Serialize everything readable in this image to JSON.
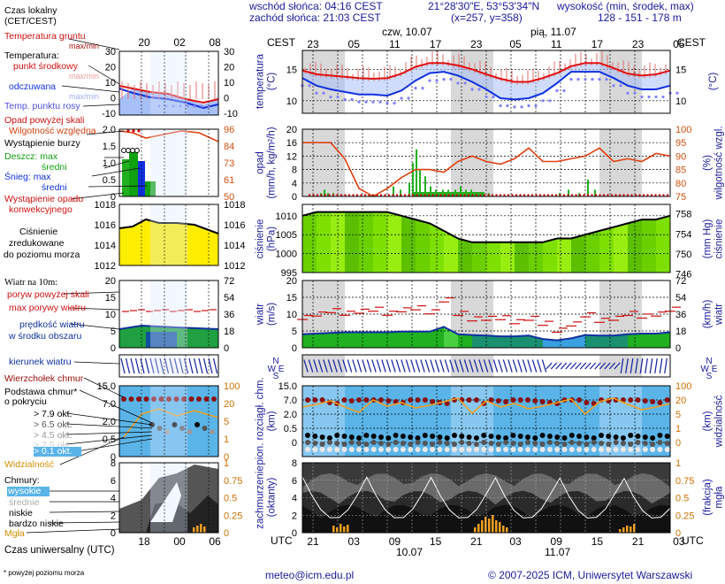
{
  "header": {
    "sunrise": "wschód słońca: 04:16 CEST",
    "sunset": "zachód słońca: 21:03 CEST",
    "coords": "21°28'30\"E, 53°53'34\"N",
    "grid": "(x=257, y=358)",
    "elevation_title": "wysokość (min, środek, max)",
    "elevation_values": "128 - 151 - 178 m",
    "day1": "czw, 10.07",
    "day2": "pią, 11.07"
  },
  "time": {
    "cest_label": "CEST",
    "utc_label": "UTC",
    "cest_ticks": [
      "23",
      "05",
      "11",
      "17",
      "23",
      "05",
      "11",
      "17",
      "23",
      "05"
    ],
    "utc_ticks": [
      "21",
      "03",
      "09",
      "15",
      "21",
      "03",
      "09",
      "15",
      "21",
      "03"
    ],
    "utc_dates": [
      "10.07",
      "11.07"
    ],
    "legend_cest_ticks": [
      "20",
      "02",
      "08"
    ],
    "legend_utc_ticks": [
      "18",
      "00",
      "06"
    ]
  },
  "legend": {
    "time_local": "Czas lokalny",
    "time_local_sub": "(CET/CEST)",
    "soil_temp": "Temperatura gruntu",
    "max_min": "max/min",
    "temperature": "Temperatura:",
    "mid_point": "punkt środkowy",
    "max_min2": "max/min",
    "felt": "odczuwana",
    "felt_max_min": "max/min",
    "dew_point": "Temp. punktu rosy",
    "precip_over_scale": "Opad powyżej skali",
    "humidity": "Wilgotność względna",
    "storm": "Wystąpienie burzy",
    "rain_max": "Deszcz: max",
    "rain_mid": "średni",
    "snow_max": "Śnieg:   max",
    "snow_mid": "średni",
    "convective": "Wystąpienie opadu",
    "convective2": "konwekcyjnego",
    "pressure1": "Ciśnienie",
    "pressure2": "zredukowane",
    "pressure3": "do poziomu morza",
    "wind_at": "Wiatr na 10m:",
    "gust_over": "poryw powyżej skali",
    "gust_max": "max porywy wiatru",
    "wind_speed1": "prędkość wiatru",
    "wind_speed2": "w środku obszaru",
    "wind_dir": "kierunek wiatru",
    "cloud_top": "Wierzchołek chmur",
    "cloud_base1": "Podstawa chmur*",
    "cloud_base2": "o pokryciu",
    "okt79": "> 7.9 okt.",
    "okt65": "> 6.5 okt.",
    "okt45": "> 4.5 okt.",
    "okt25": "> 2.5 okt.",
    "okt01": "> 0.1 okt.",
    "visibility": "Widzialność",
    "clouds": "Chmury:",
    "high": "wysokie",
    "mid": "średnie",
    "low": "niskie",
    "very_low": "bardzo niskie",
    "fog": "Mgła",
    "utc_time": "Czas uniwersalny (UTC)",
    "footnote": "* powyżej poziomu morza"
  },
  "axes": {
    "temp_label": "temperatura\n(°C)",
    "precip_label": "opad\n(mm/h, kg/m²/h)",
    "humidity_label": "(%)\nwilgotność wzgl.",
    "pressure_label": "ciśnienie\n(hPa)",
    "pressure_mmhg": "(mm Hg)\nciśnienie",
    "wind_label": "wiatr\n(m/s)",
    "wind_kmh": "(km/h)\nwiatr",
    "cloud_label": "pion. rozciągł. chm.\n(km)",
    "vis_label": "(km)\nwidzialność",
    "cover_label": "zachmurzenie\n(oktanty)",
    "fog_label": "(frakcja)\nmgła",
    "temp_ticks": [
      "15",
      "10"
    ],
    "precip_ticks": [
      "20",
      "16",
      "12",
      "8",
      "4",
      "0"
    ],
    "humidity_ticks": [
      "100",
      "95",
      "90",
      "85",
      "80",
      "75"
    ],
    "pressure_ticks": [
      "1010",
      "1005",
      "1000",
      "995"
    ],
    "mmhg_ticks": [
      "758",
      "754",
      "750",
      "746"
    ],
    "wind_ticks": [
      "20",
      "15",
      "10",
      "5",
      "0"
    ],
    "kmh_ticks": [
      "72",
      "54",
      "36",
      "18",
      "0"
    ],
    "cloud_ticks": [
      "15.0",
      "7.0",
      "2.0",
      "0.5",
      "0"
    ],
    "vis_ticks": [
      "100",
      "20",
      "5",
      "1",
      "0"
    ],
    "cover_ticks": [
      "8",
      "6",
      "4",
      "2",
      "0"
    ],
    "fog_ticks": [
      "1",
      "0.75",
      "0.5",
      "0.25",
      "0"
    ],
    "legend_temp_ticks": [
      "30",
      "20",
      "10",
      "0",
      "-10"
    ],
    "legend_precip_ticks": [
      "2.0",
      "1.5",
      "1.0",
      "0.5",
      "0"
    ],
    "legend_hum_ticks": [
      "96",
      "84",
      "73",
      "61",
      "50"
    ],
    "legend_press_ticks": [
      "1018",
      "1016",
      "1014",
      "1012"
    ],
    "legend_wind_ticks": [
      "20",
      "15",
      "10",
      "5",
      "0"
    ],
    "legend_kmh_ticks": [
      "72",
      "54",
      "36",
      "18",
      "0"
    ],
    "legend_cloud_ticks": [
      "15.0",
      "7.0",
      "2.0",
      "0.5",
      "0"
    ],
    "legend_vis_ticks": [
      "100",
      "20",
      "5",
      "1",
      "0"
    ],
    "legend_cover_ticks": [
      "8",
      "6",
      "4",
      "2",
      "0"
    ],
    "legend_fog_ticks": [
      "1",
      "0.75",
      "0.5",
      "0.25",
      "0"
    ],
    "wind_compass": "N\nW E\nS"
  },
  "footer": {
    "email": "meteo@icm.edu.pl",
    "copyright": "© 2007-2025 ICM, Uniwersytet Warszawski"
  },
  "colors": {
    "temp": "#e01010",
    "felt": "#1030e0",
    "dew": "#8080ff",
    "humidity": "#e04010",
    "pressure_fill": "#7ee000",
    "wind_green": "#20b020",
    "cloud_bg": "#5ab4e8",
    "visibility": "#f0a020",
    "night_shade": "#d8d8d8"
  },
  "chart_data": {
    "type": "line",
    "series": [
      {
        "name": "punkt środkowy",
        "values": [
          14.8,
          14.2,
          14.0,
          13.8,
          13.6,
          13.5,
          13.6,
          14.3,
          15.4,
          16.0,
          16.0,
          15.6,
          15.0,
          14.2,
          13.5,
          13.0,
          13.0,
          13.6,
          14.4,
          15.5,
          16.0,
          16.0,
          15.2,
          14.3,
          14.0,
          14.2,
          14.8
        ]
      },
      {
        "name": "odczuwana",
        "values": [
          13.6,
          12.4,
          11.8,
          11.4,
          11.0,
          11.0,
          10.8,
          11.6,
          13.2,
          14.4,
          14.6,
          14.0,
          13.0,
          11.8,
          10.4,
          10.2,
          10.4,
          11.2,
          12.8,
          14.6,
          14.6,
          14.6,
          13.6,
          12.4,
          11.8,
          11.8,
          12.4
        ]
      },
      {
        "name": "Wilgotność względna",
        "values": [
          95,
          95,
          95,
          89,
          78,
          75,
          78,
          82,
          85,
          85,
          84,
          88,
          90,
          88,
          87,
          89,
          93,
          88,
          88,
          89,
          90,
          93,
          88,
          89,
          88,
          91,
          90
        ]
      },
      {
        "name": "Ciśnienie",
        "values": [
          1010,
          1011,
          1011,
          1011,
          1011,
          1011,
          1011,
          1010,
          1009,
          1008,
          1006,
          1004,
          1003,
          1003,
          1003,
          1003,
          1003,
          1003,
          1004,
          1004,
          1005,
          1006,
          1007,
          1008,
          1009,
          1009,
          1010
        ]
      },
      {
        "name": "prędkość wiatru",
        "values": [
          4.0,
          4.2,
          4.4,
          4.6,
          4.6,
          4.6,
          4.6,
          4.8,
          4.8,
          4.8,
          6.2,
          4.0,
          3.8,
          3.6,
          3.4,
          3.4,
          3.6,
          2.6,
          2.2,
          2.8,
          3.8,
          3.6,
          3.6,
          4.0,
          4.2,
          4.2,
          4.6
        ]
      }
    ]
  }
}
